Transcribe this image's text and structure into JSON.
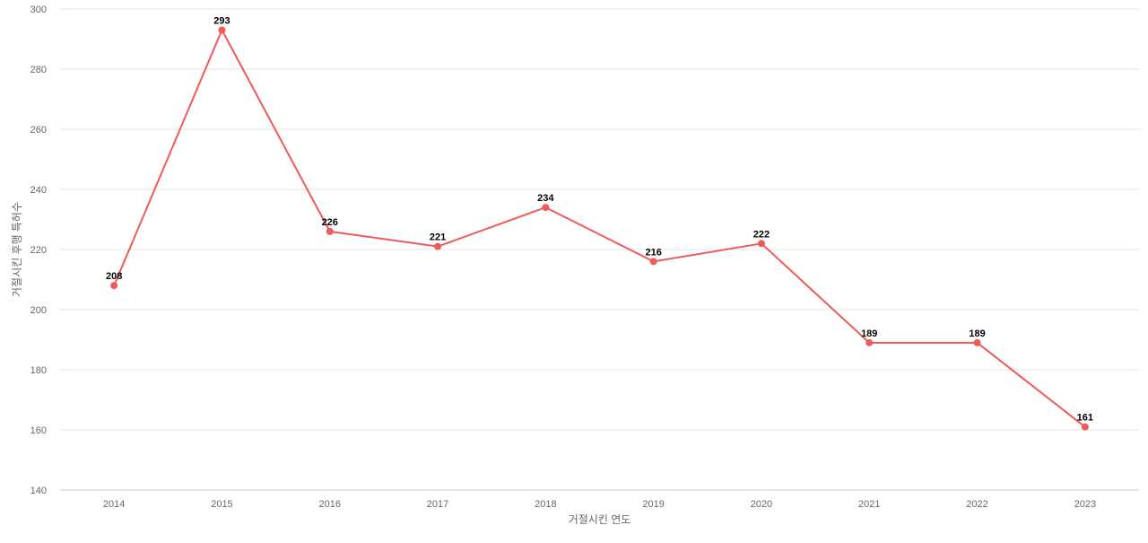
{
  "chart_data": {
    "type": "line",
    "title": "",
    "xlabel": "거절시킨 연도",
    "ylabel": "거절시킨 후행 특허수",
    "categories": [
      "2014",
      "2015",
      "2016",
      "2017",
      "2018",
      "2019",
      "2020",
      "2021",
      "2022",
      "2023"
    ],
    "series": [
      {
        "values": [
          208,
          293,
          226,
          221,
          234,
          216,
          222,
          189,
          189,
          161
        ],
        "color": "#ef5a5a"
      }
    ],
    "ylim": [
      140,
      300
    ],
    "yticks": [
      140,
      160,
      180,
      200,
      220,
      240,
      260,
      280,
      300
    ],
    "grid": true,
    "data_labels": true,
    "legend": "none"
  }
}
